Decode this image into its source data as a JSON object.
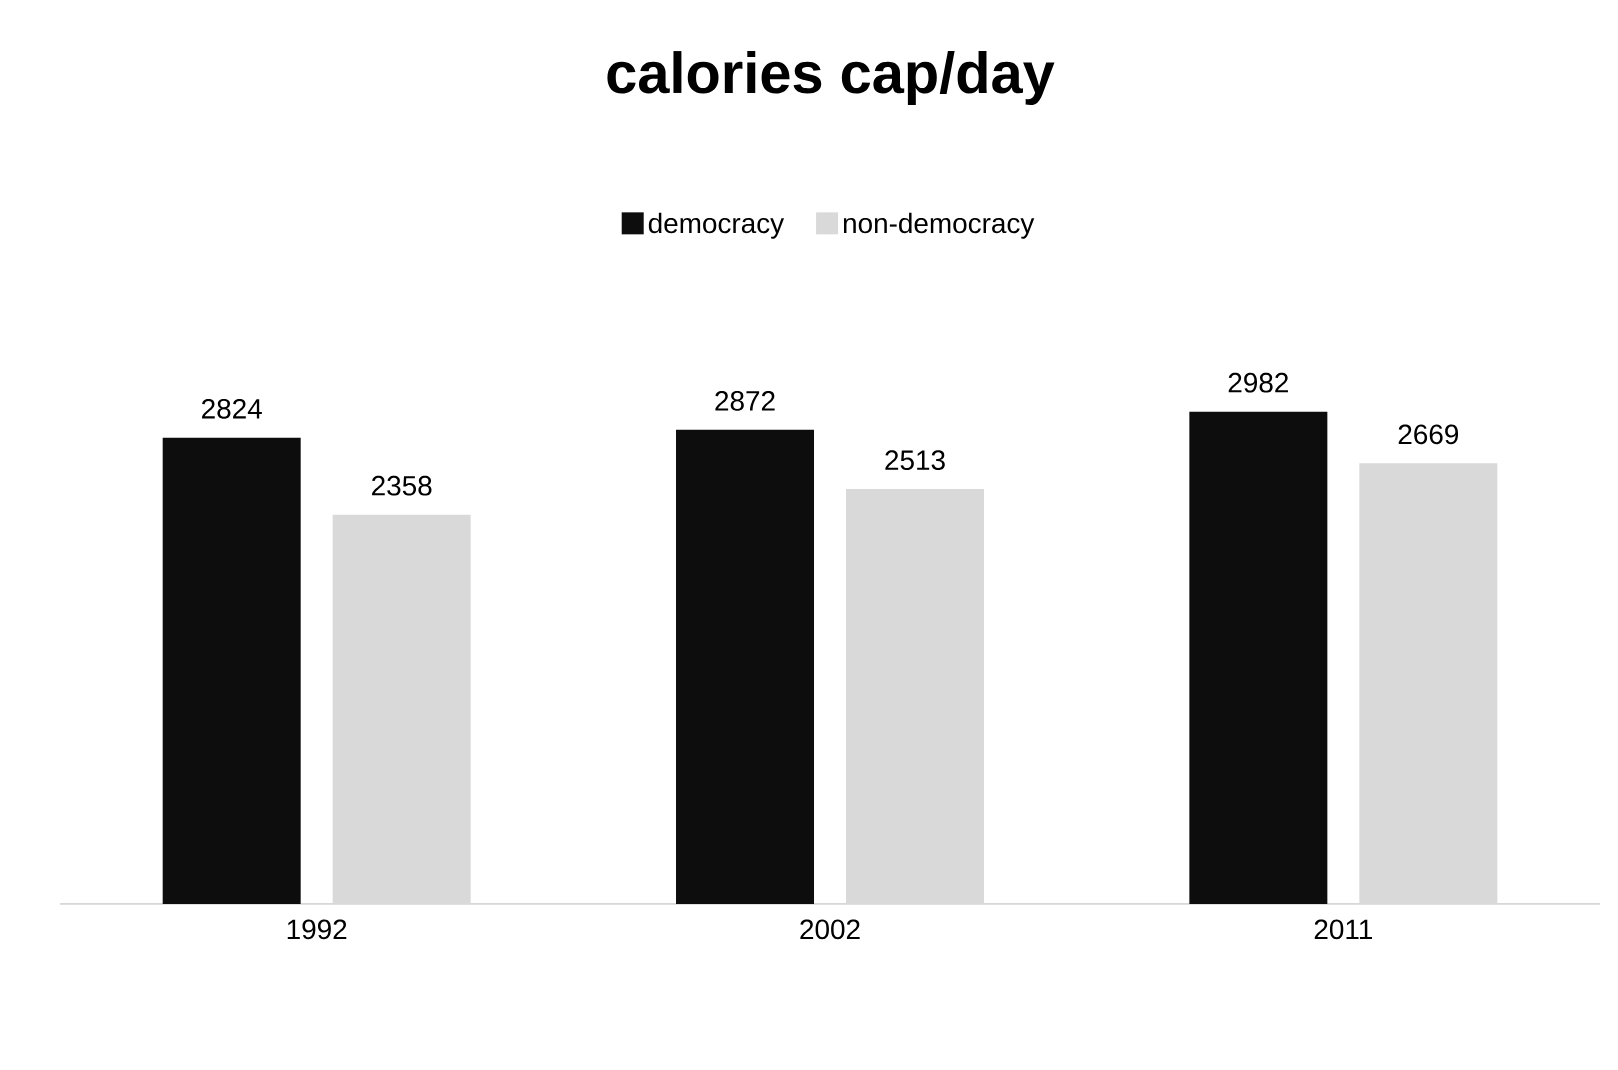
{
  "chart_data": {
    "type": "bar",
    "title": "calories cap/day",
    "categories": [
      "1992",
      "2002",
      "2011"
    ],
    "series": [
      {
        "name": "democracy",
        "color": "#0d0d0d",
        "values": [
          2824,
          2872,
          2982
        ]
      },
      {
        "name": "non-democracy",
        "color": "#d9d9d9",
        "values": [
          2358,
          2513,
          2669
        ]
      }
    ],
    "data_labels": true,
    "legend": "top"
  }
}
